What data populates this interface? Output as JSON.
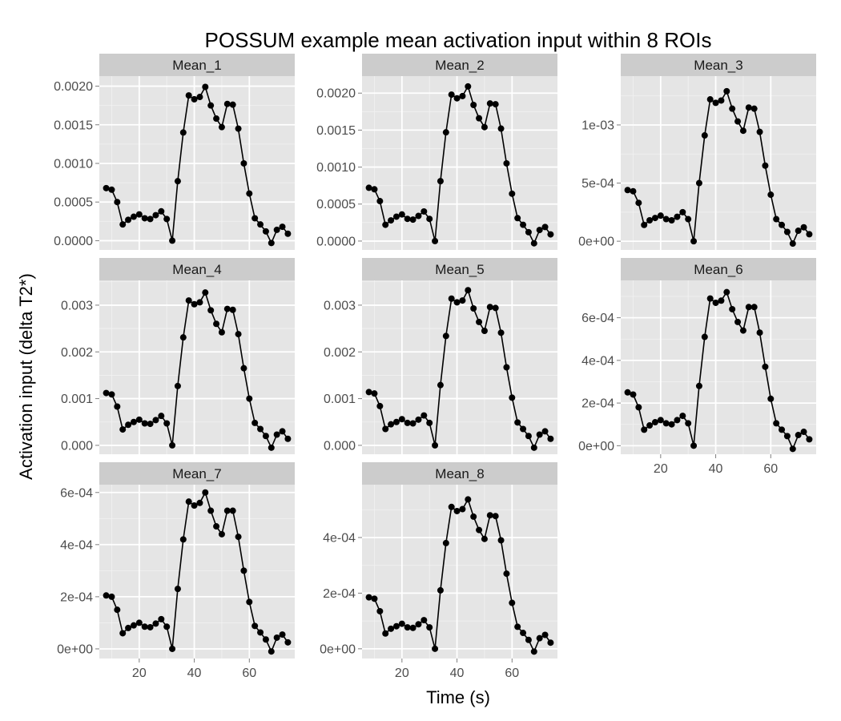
{
  "chart_data": {
    "type": "line",
    "title": "POSSUM example mean activation input within 8 ROIs",
    "xlabel": "Time (s)",
    "ylabel": "Activation input (delta T2*)",
    "xlim": [
      5.5,
      76.5
    ],
    "x_ticks": [
      {
        "value": 20,
        "label": "20"
      },
      {
        "value": 40,
        "label": "40"
      },
      {
        "value": 60,
        "label": "60"
      }
    ],
    "grid": true,
    "x": [
      8,
      10,
      12,
      14,
      16,
      18,
      20,
      22,
      24,
      26,
      28,
      30,
      32,
      34,
      36,
      38,
      40,
      42,
      44,
      46,
      48,
      50,
      52,
      54,
      56,
      58,
      60,
      62,
      64,
      66,
      68,
      70,
      72,
      74
    ],
    "panels": [
      {
        "name": "Mean_1",
        "ylim": [
          -0.00012,
          0.00213
        ],
        "y_ticks": [
          {
            "value": 0,
            "label": "0.0000"
          },
          {
            "value": 0.0005,
            "label": "0.0005"
          },
          {
            "value": 0.001,
            "label": "0.0010"
          },
          {
            "value": 0.0015,
            "label": "0.0015"
          },
          {
            "value": 0.002,
            "label": "0.0020"
          }
        ],
        "values": [
          0.00068,
          0.00066,
          0.0005,
          0.00021,
          0.00027,
          0.00031,
          0.00034,
          0.00029,
          0.00028,
          0.00033,
          0.00038,
          0.00028,
          0.0,
          0.00077,
          0.0014,
          0.00188,
          0.00183,
          0.00186,
          0.00199,
          0.00175,
          0.00158,
          0.00147,
          0.00177,
          0.00176,
          0.00145,
          0.001,
          0.00061,
          0.00029,
          0.00021,
          0.00012,
          -3e-05,
          0.00014,
          0.00018,
          9e-05
        ]
      },
      {
        "name": "Mean_2",
        "ylim": [
          -0.00012,
          0.00223
        ],
        "y_ticks": [
          {
            "value": 0,
            "label": "0.0000"
          },
          {
            "value": 0.0005,
            "label": "0.0005"
          },
          {
            "value": 0.001,
            "label": "0.0010"
          },
          {
            "value": 0.0015,
            "label": "0.0015"
          },
          {
            "value": 0.002,
            "label": "0.0020"
          }
        ],
        "values": [
          0.00072,
          0.0007,
          0.00054,
          0.00022,
          0.00028,
          0.00033,
          0.00036,
          0.0003,
          0.00029,
          0.00034,
          0.0004,
          0.0003,
          0.0,
          0.00081,
          0.00147,
          0.00198,
          0.00193,
          0.00196,
          0.00209,
          0.00184,
          0.00166,
          0.00154,
          0.00186,
          0.00185,
          0.00152,
          0.00105,
          0.00064,
          0.00031,
          0.00022,
          0.00012,
          -3e-05,
          0.00015,
          0.00019,
          9e-05
        ]
      },
      {
        "name": "Mean_3",
        "ylim": [
          -7.5e-05,
          0.00142
        ],
        "y_ticks": [
          {
            "value": 0,
            "label": "0e+00"
          },
          {
            "value": 0.0005,
            "label": "5e-04"
          },
          {
            "value": 0.001,
            "label": "1e-03"
          }
        ],
        "values": [
          0.00044,
          0.00043,
          0.00033,
          0.00014,
          0.00018,
          0.0002,
          0.00022,
          0.00019,
          0.00018,
          0.00021,
          0.00025,
          0.00019,
          0.0,
          0.0005,
          0.00091,
          0.00122,
          0.00119,
          0.00121,
          0.00129,
          0.00114,
          0.00103,
          0.00095,
          0.00115,
          0.00114,
          0.00094,
          0.00065,
          0.0004,
          0.00019,
          0.00014,
          8e-05,
          -2e-05,
          9e-05,
          0.00012,
          6e-05
        ]
      },
      {
        "name": "Mean_4",
        "ylim": [
          -0.00019,
          0.00353
        ],
        "y_ticks": [
          {
            "value": 0,
            "label": "0.000"
          },
          {
            "value": 0.001,
            "label": "0.001"
          },
          {
            "value": 0.002,
            "label": "0.002"
          },
          {
            "value": 0.003,
            "label": "0.003"
          }
        ],
        "values": [
          0.00112,
          0.00109,
          0.00083,
          0.00034,
          0.00044,
          0.0005,
          0.00055,
          0.00047,
          0.00046,
          0.00054,
          0.00063,
          0.00047,
          0.0,
          0.00127,
          0.00231,
          0.0031,
          0.00302,
          0.00306,
          0.00327,
          0.00289,
          0.0026,
          0.00242,
          0.00292,
          0.0029,
          0.00238,
          0.00165,
          0.001,
          0.00048,
          0.00035,
          0.0002,
          -5e-05,
          0.00023,
          0.0003,
          0.00014
        ]
      },
      {
        "name": "Mean_5",
        "ylim": [
          -0.00019,
          0.00353
        ],
        "y_ticks": [
          {
            "value": 0,
            "label": "0.000"
          },
          {
            "value": 0.001,
            "label": "0.001"
          },
          {
            "value": 0.002,
            "label": "0.002"
          },
          {
            "value": 0.003,
            "label": "0.003"
          }
        ],
        "values": [
          0.00114,
          0.00111,
          0.00084,
          0.00035,
          0.00045,
          0.0005,
          0.00056,
          0.00048,
          0.00047,
          0.00055,
          0.00064,
          0.00048,
          0.0,
          0.00129,
          0.00234,
          0.00314,
          0.00306,
          0.0031,
          0.00332,
          0.00293,
          0.00264,
          0.00245,
          0.00296,
          0.00294,
          0.00241,
          0.00167,
          0.00102,
          0.00049,
          0.00035,
          0.0002,
          -5e-05,
          0.00023,
          0.0003,
          0.00014
        ]
      },
      {
        "name": "Mean_6",
        "ylim": [
          -4e-05,
          0.000775
        ],
        "y_ticks": [
          {
            "value": 0,
            "label": "0e+00"
          },
          {
            "value": 0.0002,
            "label": "2e-04"
          },
          {
            "value": 0.0004,
            "label": "4e-04"
          },
          {
            "value": 0.0006,
            "label": "6e-04"
          }
        ],
        "values": [
          0.00025,
          0.00024,
          0.00018,
          7.5e-05,
          9.5e-05,
          0.00011,
          0.00012,
          0.000105,
          0.0001,
          0.00012,
          0.00014,
          0.000105,
          0.0,
          0.00028,
          0.00051,
          0.00069,
          0.00067,
          0.00068,
          0.00072,
          0.00064,
          0.00058,
          0.00054,
          0.00065,
          0.00065,
          0.00053,
          0.00037,
          0.00022,
          0.000105,
          7.5e-05,
          4.5e-05,
          -1.5e-05,
          5e-05,
          6.5e-05,
          3e-05
        ]
      },
      {
        "name": "Mean_7",
        "ylim": [
          -3.7e-05,
          0.00063
        ],
        "y_ticks": [
          {
            "value": 0,
            "label": "0e+00"
          },
          {
            "value": 0.0002,
            "label": "2e-04"
          },
          {
            "value": 0.0004,
            "label": "4e-04"
          },
          {
            "value": 0.0006,
            "label": "6e-04"
          }
        ],
        "values": [
          0.000205,
          0.0002,
          0.00015,
          6e-05,
          8e-05,
          9e-05,
          0.0001,
          8.5e-05,
          8.3e-05,
          9.7e-05,
          0.000114,
          8.5e-05,
          0.0,
          0.00023,
          0.00042,
          0.000565,
          0.00055,
          0.00056,
          0.0006,
          0.00053,
          0.00047,
          0.00044,
          0.00053,
          0.00053,
          0.00043,
          0.0003,
          0.00018,
          8.8e-05,
          6.3e-05,
          3.6e-05,
          -1e-05,
          4.3e-05,
          5.5e-05,
          2.5e-05
        ]
      },
      {
        "name": "Mean_8",
        "ylim": [
          -3.5e-05,
          0.00059
        ],
        "y_ticks": [
          {
            "value": 0,
            "label": "0e+00"
          },
          {
            "value": 0.0002,
            "label": "2e-04"
          },
          {
            "value": 0.0004,
            "label": "4e-04"
          }
        ],
        "values": [
          0.000185,
          0.00018,
          0.000135,
          5.5e-05,
          7.2e-05,
          8.1e-05,
          9e-05,
          7.7e-05,
          7.5e-05,
          8.8e-05,
          0.000103,
          7.7e-05,
          0.0,
          0.00021,
          0.00038,
          0.00051,
          0.000495,
          0.000502,
          0.000537,
          0.000475,
          0.000427,
          0.000395,
          0.00048,
          0.000477,
          0.00039,
          0.00027,
          0.000165,
          7.9e-05,
          5.7e-05,
          3.2e-05,
          -1e-05,
          3.8e-05,
          5e-05,
          2.2e-05
        ]
      }
    ]
  },
  "colors": {
    "panel_bg": "#e5e5e5",
    "grid_major": "#ffffff",
    "grid_minor": "#f2f2f2",
    "strip_bg": "#cccccc",
    "line": "#000000",
    "tick_text": "#4d4d4d"
  }
}
